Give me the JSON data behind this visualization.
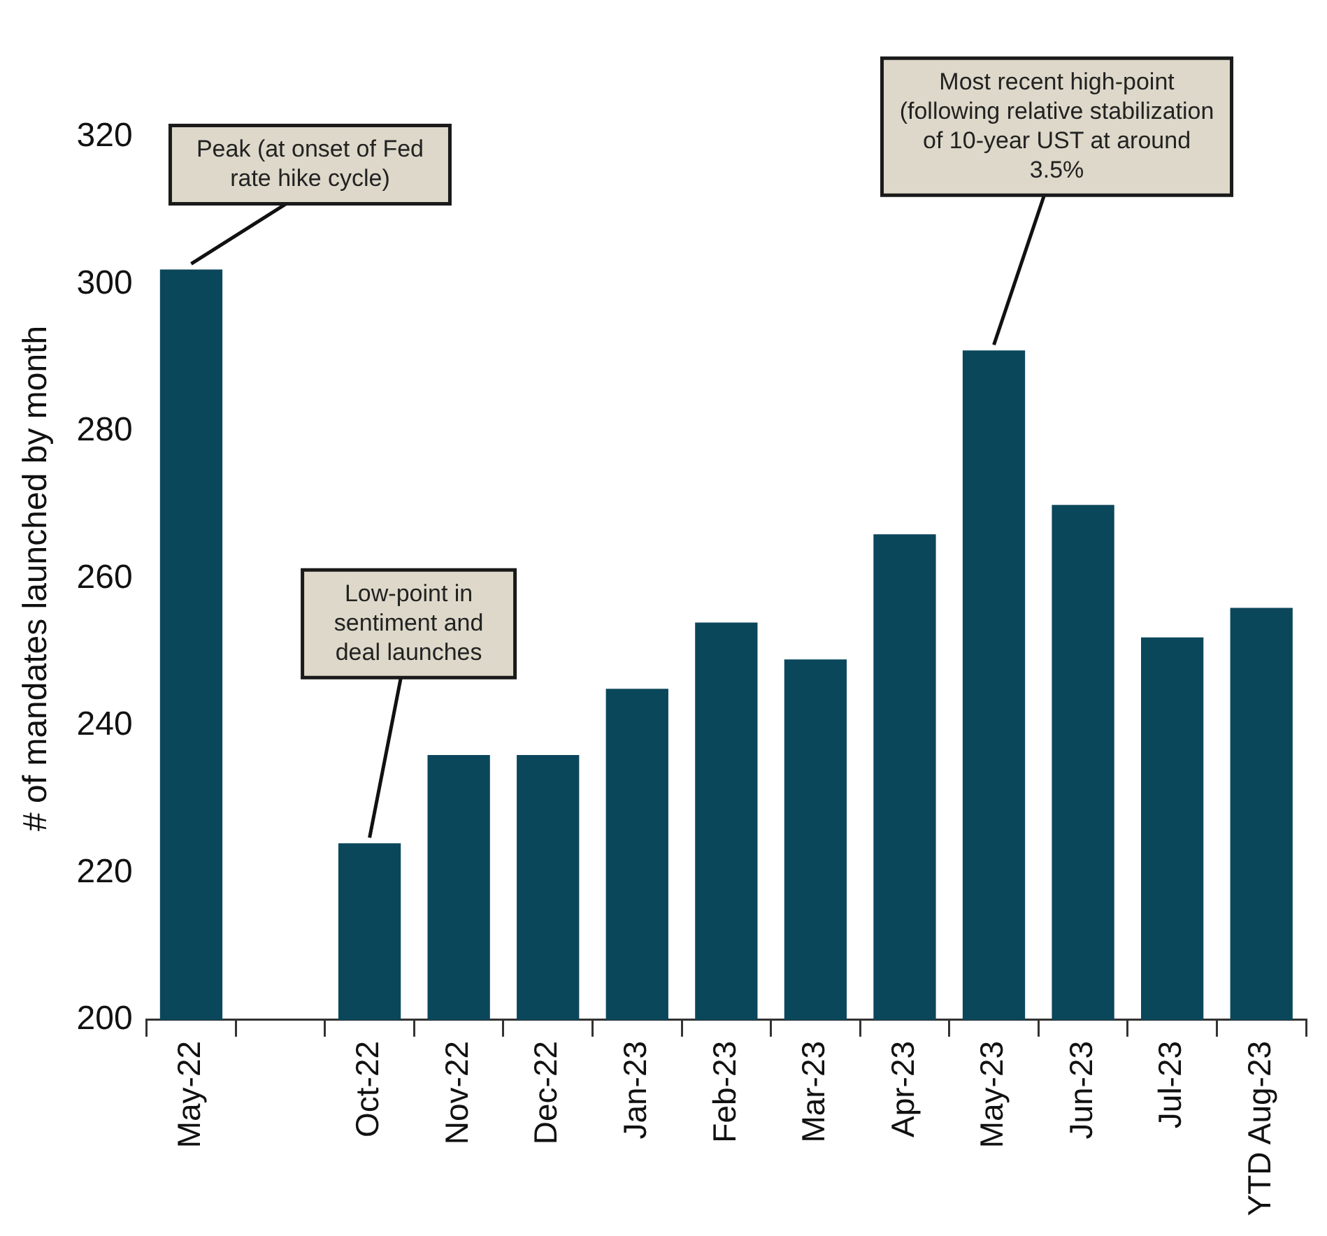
{
  "chart_data": {
    "type": "bar",
    "ylabel": "# of mandates launched by month",
    "categories": [
      "May-22",
      null,
      "Oct-22",
      "Nov-22",
      "Dec-22",
      "Jan-23",
      "Feb-23",
      "Mar-23",
      "Apr-23",
      "May-23",
      "Jun-23",
      "Jul-23",
      "YTD Aug-23"
    ],
    "values": [
      302,
      null,
      224,
      236,
      236,
      245,
      254,
      249,
      266,
      291,
      270,
      252,
      256
    ],
    "color": "#0b475b",
    "ylim": [
      200,
      320
    ],
    "yticks": [
      200,
      220,
      240,
      260,
      280,
      300,
      320
    ],
    "grid": false,
    "legend": false,
    "annotations": [
      {
        "text": "Peak (at onset of Fed rate hike cycle)",
        "x": "May-22",
        "y": 302
      },
      {
        "text": "Low-point in sentiment and deal launches",
        "x": "Oct-22",
        "y": 224
      },
      {
        "text": "Most recent high-point (following relative stabilization of 10-year UST at around 3.5%",
        "x": "May-23",
        "y": 291
      }
    ]
  }
}
